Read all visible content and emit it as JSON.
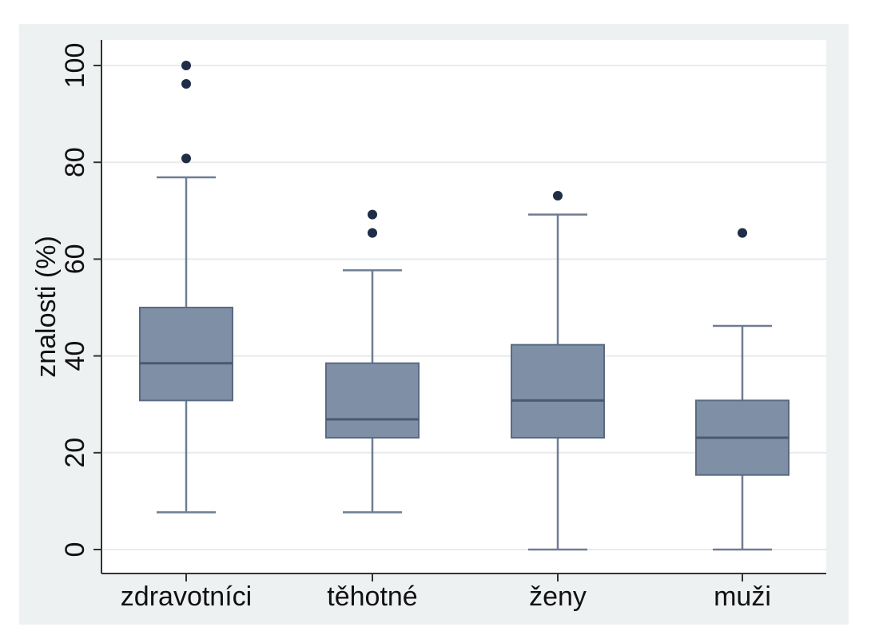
{
  "chart_data": {
    "type": "boxplot",
    "ylabel": "znalosti (%)",
    "xlabel": "",
    "ylim": [
      0,
      100
    ],
    "yticks": [
      "0",
      "20",
      "40",
      "60",
      "80",
      "100"
    ],
    "grid": true,
    "categories": [
      "zdravotníci",
      "těhotné",
      "ženy",
      "muži"
    ],
    "boxes": [
      {
        "category": "zdravotníci",
        "min": 7.7,
        "q1": 30.8,
        "median": 38.5,
        "q3": 50,
        "max": 76.9,
        "outliers": [
          80.8,
          96.2,
          100
        ]
      },
      {
        "category": "těhotné",
        "min": 7.7,
        "q1": 23.1,
        "median": 26.9,
        "q3": 38.5,
        "max": 57.7,
        "outliers": [
          65.4,
          69.2
        ]
      },
      {
        "category": "ženy",
        "min": 0,
        "q1": 23.1,
        "median": 30.8,
        "q3": 42.3,
        "max": 69.2,
        "outliers": [
          73.1
        ]
      },
      {
        "category": "muži",
        "min": 0,
        "q1": 15.4,
        "median": 23.1,
        "q3": 30.8,
        "max": 46.2,
        "outliers": [
          65.4
        ]
      }
    ],
    "colors": {
      "box_fill": "#7e8fa6",
      "box_stroke": "#5a6a82",
      "whisker": "#6f7d93",
      "median": "#4a5870",
      "outlier": "#1f2d46",
      "grid": "#e8eaeb",
      "background": "#eef1f2",
      "plot_background": "#ffffff"
    }
  }
}
